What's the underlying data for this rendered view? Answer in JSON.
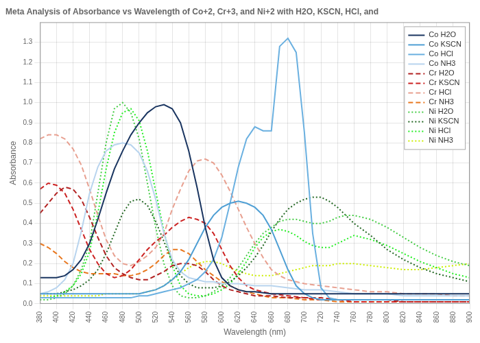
{
  "chart_data": {
    "type": "line",
    "title": "Meta Analysis of Absorbance vs Wavelength of Co+2, Cr+3, and Ni+2 with H2O, KSCN, HCl, and",
    "xlabel": "Wavelength (nm)",
    "ylabel": "Absorbance",
    "xlim": [
      380,
      900
    ],
    "ylim": [
      0,
      1.4
    ],
    "xticks": [
      380,
      400,
      420,
      440,
      460,
      480,
      500,
      520,
      540,
      560,
      580,
      600,
      620,
      640,
      660,
      680,
      700,
      720,
      740,
      760,
      780,
      800,
      820,
      840,
      860,
      880,
      900
    ],
    "yticks": [
      {
        "value": 0,
        "label": "0.0"
      },
      0.1,
      0.2,
      0.3,
      0.4,
      0.5,
      0.6,
      0.7,
      0.8,
      0.9,
      {
        "value": 1.0,
        "label": "1.0"
      },
      1.1,
      1.2,
      1.3
    ],
    "grid": true,
    "legend": "upper right",
    "series": [
      {
        "name": "Co H2O",
        "color": "#1a3560",
        "line_style": "solid",
        "x": [
          380,
          390,
          400,
          410,
          420,
          430,
          440,
          450,
          460,
          470,
          480,
          490,
          500,
          510,
          520,
          530,
          540,
          550,
          560,
          570,
          580,
          590,
          600,
          610,
          620,
          630,
          640,
          660,
          680,
          700,
          720,
          740,
          760,
          780,
          800,
          820,
          840,
          860,
          880,
          900
        ],
        "values": [
          0.13,
          0.13,
          0.13,
          0.14,
          0.17,
          0.22,
          0.3,
          0.42,
          0.55,
          0.67,
          0.76,
          0.84,
          0.9,
          0.95,
          0.98,
          0.99,
          0.97,
          0.9,
          0.76,
          0.58,
          0.38,
          0.22,
          0.13,
          0.09,
          0.07,
          0.06,
          0.06,
          0.05,
          0.05,
          0.05,
          0.05,
          0.05,
          0.05,
          0.05,
          0.05,
          0.05,
          0.05,
          0.05,
          0.05,
          0.05
        ]
      },
      {
        "name": "Co KSCN",
        "color": "#4f9fd4",
        "line_style": "solid",
        "x": [
          380,
          390,
          400,
          410,
          420,
          430,
          440,
          450,
          460,
          470,
          480,
          490,
          500,
          510,
          520,
          530,
          540,
          550,
          560,
          570,
          580,
          590,
          600,
          610,
          620,
          630,
          640,
          650,
          660,
          670,
          680,
          690,
          700,
          710,
          720,
          730,
          740,
          760,
          780,
          800,
          820,
          840,
          860,
          880,
          900
        ],
        "values": [
          0.05,
          0.05,
          0.05,
          0.05,
          0.05,
          0.05,
          0.05,
          0.05,
          0.05,
          0.05,
          0.05,
          0.05,
          0.05,
          0.06,
          0.07,
          0.09,
          0.12,
          0.16,
          0.22,
          0.3,
          0.38,
          0.44,
          0.48,
          0.5,
          0.51,
          0.5,
          0.48,
          0.44,
          0.37,
          0.27,
          0.17,
          0.09,
          0.05,
          0.03,
          0.02,
          0.02,
          0.02,
          0.02,
          0.02,
          0.02,
          0.02,
          0.02,
          0.02,
          0.02,
          0.02
        ]
      },
      {
        "name": "Co HCl",
        "color": "#6ab0e0",
        "line_style": "solid",
        "x": [
          380,
          390,
          400,
          410,
          420,
          430,
          440,
          450,
          460,
          470,
          480,
          490,
          500,
          510,
          520,
          530,
          540,
          550,
          560,
          570,
          580,
          590,
          600,
          610,
          620,
          630,
          640,
          650,
          660,
          670,
          680,
          690,
          700,
          710,
          720,
          730,
          740,
          760,
          780,
          800,
          820,
          840,
          860,
          880,
          900
        ],
        "values": [
          0.03,
          0.03,
          0.03,
          0.03,
          0.03,
          0.03,
          0.03,
          0.03,
          0.03,
          0.03,
          0.03,
          0.03,
          0.04,
          0.04,
          0.05,
          0.06,
          0.07,
          0.08,
          0.1,
          0.12,
          0.16,
          0.22,
          0.33,
          0.5,
          0.68,
          0.82,
          0.88,
          0.86,
          0.86,
          1.28,
          1.32,
          1.25,
          0.85,
          0.35,
          0.08,
          0.03,
          0.02,
          0.02,
          0.02,
          0.02,
          0.02,
          0.02,
          0.02,
          0.02,
          0.02
        ]
      },
      {
        "name": "Co NH3",
        "color": "#b8d4ee",
        "line_style": "solid",
        "x": [
          380,
          390,
          400,
          410,
          420,
          430,
          440,
          450,
          460,
          470,
          480,
          490,
          500,
          510,
          520,
          530,
          540,
          550,
          560,
          570,
          580,
          590,
          600,
          620,
          640,
          660,
          680,
          700,
          720,
          740,
          760,
          780,
          800,
          820,
          840,
          860,
          880,
          900
        ],
        "values": [
          0.05,
          0.06,
          0.08,
          0.12,
          0.2,
          0.36,
          0.55,
          0.68,
          0.76,
          0.79,
          0.8,
          0.79,
          0.75,
          0.66,
          0.52,
          0.35,
          0.22,
          0.16,
          0.13,
          0.12,
          0.11,
          0.11,
          0.1,
          0.1,
          0.09,
          0.09,
          0.08,
          0.07,
          0.07,
          0.06,
          0.05,
          0.05,
          0.05,
          0.04,
          0.04,
          0.04,
          0.04,
          0.04
        ]
      },
      {
        "name": "Cr H2O",
        "color": "#b22222",
        "line_style": "dashed",
        "x": [
          380,
          390,
          400,
          410,
          420,
          430,
          440,
          450,
          460,
          470,
          480,
          490,
          500,
          510,
          520,
          530,
          540,
          550,
          560,
          570,
          580,
          590,
          600,
          610,
          620,
          630,
          640,
          660,
          680,
          700,
          720,
          740,
          760,
          780,
          800,
          820,
          840,
          860,
          880,
          900
        ],
        "values": [
          0.45,
          0.5,
          0.55,
          0.58,
          0.57,
          0.52,
          0.43,
          0.33,
          0.24,
          0.18,
          0.15,
          0.13,
          0.12,
          0.12,
          0.14,
          0.16,
          0.19,
          0.2,
          0.2,
          0.19,
          0.16,
          0.12,
          0.09,
          0.07,
          0.06,
          0.05,
          0.04,
          0.04,
          0.03,
          0.03,
          0.03,
          0.02,
          0.02,
          0.02,
          0.02,
          0.01,
          0.01,
          0.01,
          0.01,
          0.01
        ]
      },
      {
        "name": "Cr KSCN",
        "color": "#cc2222",
        "line_style": "dashed",
        "x": [
          380,
          390,
          400,
          410,
          420,
          430,
          440,
          450,
          460,
          470,
          480,
          490,
          500,
          510,
          520,
          530,
          540,
          550,
          560,
          570,
          580,
          590,
          600,
          610,
          620,
          630,
          640,
          660,
          680,
          700,
          720,
          740,
          760,
          780,
          800,
          820,
          840,
          860,
          880,
          900
        ],
        "values": [
          0.57,
          0.6,
          0.59,
          0.55,
          0.47,
          0.37,
          0.27,
          0.2,
          0.15,
          0.13,
          0.14,
          0.17,
          0.22,
          0.27,
          0.31,
          0.34,
          0.38,
          0.41,
          0.43,
          0.42,
          0.4,
          0.35,
          0.27,
          0.19,
          0.13,
          0.09,
          0.07,
          0.05,
          0.04,
          0.03,
          0.02,
          0.02,
          0.01,
          0.01,
          0.01,
          0.01,
          0.01,
          0.01,
          0.01,
          0.01
        ]
      },
      {
        "name": "Cr HCl",
        "color": "#e8a090",
        "line_style": "dashed",
        "x": [
          380,
          390,
          400,
          410,
          420,
          430,
          440,
          450,
          460,
          470,
          480,
          490,
          500,
          510,
          520,
          530,
          540,
          550,
          560,
          570,
          580,
          590,
          600,
          610,
          620,
          630,
          640,
          650,
          660,
          670,
          680,
          700,
          720,
          740,
          760,
          780,
          800,
          820,
          840,
          860,
          880,
          900
        ],
        "values": [
          0.82,
          0.84,
          0.84,
          0.82,
          0.77,
          0.69,
          0.57,
          0.44,
          0.32,
          0.24,
          0.2,
          0.19,
          0.21,
          0.24,
          0.28,
          0.35,
          0.47,
          0.57,
          0.66,
          0.71,
          0.72,
          0.7,
          0.64,
          0.56,
          0.47,
          0.38,
          0.3,
          0.23,
          0.17,
          0.14,
          0.12,
          0.1,
          0.09,
          0.08,
          0.07,
          0.06,
          0.06,
          0.05,
          0.05,
          0.05,
          0.04,
          0.04
        ]
      },
      {
        "name": "Cr NH3",
        "color": "#e87820",
        "line_style": "dashed",
        "x": [
          380,
          390,
          400,
          410,
          420,
          430,
          440,
          450,
          460,
          470,
          480,
          490,
          500,
          510,
          520,
          530,
          540,
          550,
          560,
          570,
          580,
          590,
          600,
          620,
          640,
          660,
          680,
          700,
          720,
          740,
          760,
          780,
          800,
          820,
          840,
          860,
          880,
          900
        ],
        "values": [
          0.3,
          0.28,
          0.25,
          0.21,
          0.18,
          0.16,
          0.15,
          0.15,
          0.15,
          0.15,
          0.14,
          0.14,
          0.15,
          0.17,
          0.2,
          0.24,
          0.27,
          0.27,
          0.25,
          0.21,
          0.17,
          0.14,
          0.11,
          0.07,
          0.05,
          0.03,
          0.03,
          0.02,
          0.02,
          0.01,
          0.01,
          0.01,
          0.01,
          0.01,
          0.01,
          0.01,
          0.01,
          0.01
        ]
      },
      {
        "name": "Ni H2O",
        "color": "#44cc44",
        "line_style": "dotted",
        "x": [
          380,
          390,
          400,
          410,
          420,
          430,
          440,
          450,
          460,
          470,
          480,
          490,
          500,
          510,
          520,
          530,
          540,
          550,
          560,
          570,
          580,
          590,
          600,
          610,
          620,
          630,
          640,
          650,
          660,
          670,
          680,
          690,
          700,
          710,
          720,
          730,
          740,
          750,
          760,
          770,
          780,
          800,
          820,
          840,
          860,
          880,
          900
        ],
        "values": [
          0.02,
          0.02,
          0.03,
          0.05,
          0.09,
          0.17,
          0.3,
          0.55,
          0.8,
          0.97,
          1.0,
          0.95,
          0.82,
          0.6,
          0.38,
          0.2,
          0.09,
          0.04,
          0.03,
          0.03,
          0.04,
          0.06,
          0.09,
          0.13,
          0.18,
          0.24,
          0.3,
          0.35,
          0.38,
          0.41,
          0.42,
          0.42,
          0.41,
          0.4,
          0.4,
          0.41,
          0.43,
          0.44,
          0.44,
          0.43,
          0.42,
          0.38,
          0.33,
          0.28,
          0.24,
          0.21,
          0.19
        ]
      },
      {
        "name": "Ni KSCN",
        "color": "#226622",
        "line_style": "dotted",
        "x": [
          380,
          390,
          400,
          410,
          420,
          430,
          440,
          450,
          460,
          470,
          480,
          490,
          500,
          510,
          520,
          530,
          540,
          550,
          560,
          570,
          580,
          590,
          600,
          610,
          620,
          630,
          640,
          650,
          660,
          670,
          680,
          690,
          700,
          710,
          720,
          730,
          740,
          750,
          760,
          780,
          800,
          820,
          840,
          860,
          880,
          900
        ],
        "values": [
          0.05,
          0.05,
          0.05,
          0.06,
          0.07,
          0.09,
          0.12,
          0.17,
          0.25,
          0.35,
          0.45,
          0.51,
          0.52,
          0.49,
          0.41,
          0.31,
          0.21,
          0.14,
          0.1,
          0.08,
          0.08,
          0.08,
          0.09,
          0.11,
          0.14,
          0.18,
          0.23,
          0.29,
          0.36,
          0.42,
          0.47,
          0.5,
          0.52,
          0.53,
          0.53,
          0.51,
          0.48,
          0.44,
          0.4,
          0.34,
          0.27,
          0.22,
          0.18,
          0.15,
          0.13,
          0.11
        ]
      },
      {
        "name": "Ni HCl",
        "color": "#22ee22",
        "line_style": "dotted",
        "x": [
          380,
          390,
          400,
          410,
          420,
          430,
          440,
          450,
          460,
          470,
          480,
          490,
          500,
          510,
          520,
          530,
          540,
          550,
          560,
          570,
          580,
          590,
          600,
          610,
          620,
          630,
          640,
          650,
          660,
          670,
          680,
          690,
          700,
          710,
          720,
          730,
          740,
          750,
          760,
          780,
          800,
          820,
          840,
          860,
          880,
          900
        ],
        "values": [
          0.03,
          0.03,
          0.04,
          0.06,
          0.09,
          0.15,
          0.26,
          0.45,
          0.67,
          0.85,
          0.95,
          0.97,
          0.91,
          0.76,
          0.56,
          0.36,
          0.19,
          0.09,
          0.05,
          0.04,
          0.04,
          0.05,
          0.07,
          0.1,
          0.15,
          0.21,
          0.28,
          0.33,
          0.36,
          0.37,
          0.36,
          0.34,
          0.31,
          0.29,
          0.28,
          0.28,
          0.3,
          0.32,
          0.34,
          0.32,
          0.29,
          0.25,
          0.21,
          0.18,
          0.15,
          0.13
        ]
      },
      {
        "name": "Ni NH3",
        "color": "#ccee00",
        "line_style": "dotted",
        "x": [
          380,
          390,
          400,
          410,
          420,
          430,
          440,
          450,
          460,
          470,
          480,
          490,
          500,
          510,
          520,
          530,
          540,
          550,
          560,
          570,
          580,
          590,
          600,
          610,
          620,
          630,
          640,
          650,
          660,
          670,
          680,
          690,
          700,
          710,
          720,
          730,
          740,
          750,
          760,
          780,
          800,
          820,
          840,
          860,
          880,
          900
        ],
        "values": [
          0.04,
          0.04,
          0.04,
          0.04,
          0.04,
          0.04,
          0.04,
          0.04,
          0.05,
          0.05,
          0.05,
          0.05,
          0.05,
          0.06,
          0.07,
          0.09,
          0.12,
          0.15,
          0.18,
          0.2,
          0.21,
          0.21,
          0.2,
          0.18,
          0.16,
          0.15,
          0.14,
          0.14,
          0.14,
          0.15,
          0.16,
          0.17,
          0.18,
          0.19,
          0.19,
          0.19,
          0.2,
          0.2,
          0.2,
          0.19,
          0.18,
          0.17,
          0.17,
          0.18,
          0.19,
          0.2
        ]
      }
    ]
  }
}
